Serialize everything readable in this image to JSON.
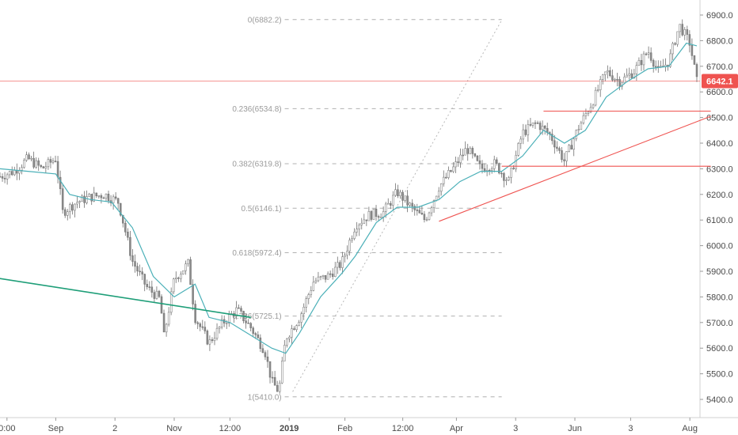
{
  "chart_data": {
    "type": "candlestick",
    "title": "",
    "xlabel": "",
    "ylabel": "",
    "ylim": [
      5360,
      6960
    ],
    "y_ticks": [
      "6900.0",
      "6800.0",
      "6700.0",
      "6600.0",
      "6500.0",
      "6400.0",
      "6300.0",
      "6200.0",
      "6100.0",
      "6000.0",
      "5900.0",
      "5800.0",
      "5700.0",
      "5600.0",
      "5500.0",
      "5400.0"
    ],
    "x_ticks": [
      "0:00",
      "Sep",
      "2",
      "Nov",
      "12:00",
      "2019",
      "Feb",
      "12:00",
      "Apr",
      "3",
      "Jun",
      "3",
      "Aug"
    ],
    "current_price": {
      "label": "6642.1",
      "value": 6642.1,
      "color": "#ef5350"
    },
    "fib_levels": [
      {
        "label": "0(6882.2)",
        "value": 6882.2
      },
      {
        "label": "0.236(6534.8)",
        "value": 6534.8
      },
      {
        "label": "0.382(6319.8)",
        "value": 6319.8
      },
      {
        "label": "0.5(6146.1)",
        "value": 6146.1
      },
      {
        "label": "0.618(5972.4)",
        "value": 5972.4
      },
      {
        "label": "0.786(5725.1)",
        "value": 5725.1
      },
      {
        "label": "1(5410.0)",
        "value": 5410.0
      }
    ],
    "price_path": [
      [
        0,
        6270
      ],
      [
        0.02,
        6290
      ],
      [
        0.04,
        6340
      ],
      [
        0.06,
        6300
      ],
      [
        0.08,
        6340
      ],
      [
        0.09,
        6130
      ],
      [
        0.11,
        6170
      ],
      [
        0.13,
        6190
      ],
      [
        0.15,
        6200
      ],
      [
        0.17,
        6170
      ],
      [
        0.19,
        5940
      ],
      [
        0.21,
        5840
      ],
      [
        0.23,
        5790
      ],
      [
        0.235,
        5640
      ],
      [
        0.25,
        5870
      ],
      [
        0.27,
        5930
      ],
      [
        0.28,
        5720
      ],
      [
        0.3,
        5620
      ],
      [
        0.32,
        5700
      ],
      [
        0.34,
        5750
      ],
      [
        0.36,
        5680
      ],
      [
        0.38,
        5590
      ],
      [
        0.39,
        5470
      ],
      [
        0.4,
        5430
      ],
      [
        0.41,
        5640
      ],
      [
        0.43,
        5720
      ],
      [
        0.45,
        5860
      ],
      [
        0.47,
        5880
      ],
      [
        0.49,
        5930
      ],
      [
        0.51,
        6080
      ],
      [
        0.53,
        6120
      ],
      [
        0.55,
        6130
      ],
      [
        0.57,
        6210
      ],
      [
        0.59,
        6150
      ],
      [
        0.61,
        6100
      ],
      [
        0.63,
        6230
      ],
      [
        0.65,
        6300
      ],
      [
        0.67,
        6380
      ],
      [
        0.69,
        6300
      ],
      [
        0.71,
        6320
      ],
      [
        0.73,
        6250
      ],
      [
        0.75,
        6440
      ],
      [
        0.77,
        6480
      ],
      [
        0.79,
        6430
      ],
      [
        0.81,
        6330
      ],
      [
        0.83,
        6460
      ],
      [
        0.85,
        6560
      ],
      [
        0.87,
        6680
      ],
      [
        0.89,
        6640
      ],
      [
        0.91,
        6680
      ],
      [
        0.93,
        6760
      ],
      [
        0.945,
        6680
      ],
      [
        0.96,
        6720
      ],
      [
        0.975,
        6860
      ],
      [
        0.99,
        6790
      ],
      [
        1.0,
        6642
      ]
    ],
    "moving_average": [
      [
        0,
        6300
      ],
      [
        0.04,
        6290
      ],
      [
        0.08,
        6280
      ],
      [
        0.1,
        6200
      ],
      [
        0.13,
        6180
      ],
      [
        0.16,
        6170
      ],
      [
        0.19,
        6070
      ],
      [
        0.22,
        5880
      ],
      [
        0.25,
        5800
      ],
      [
        0.28,
        5850
      ],
      [
        0.3,
        5720
      ],
      [
        0.33,
        5700
      ],
      [
        0.36,
        5650
      ],
      [
        0.39,
        5600
      ],
      [
        0.41,
        5580
      ],
      [
        0.43,
        5660
      ],
      [
        0.46,
        5800
      ],
      [
        0.49,
        5890
      ],
      [
        0.51,
        5960
      ],
      [
        0.54,
        6090
      ],
      [
        0.57,
        6150
      ],
      [
        0.6,
        6150
      ],
      [
        0.63,
        6180
      ],
      [
        0.66,
        6250
      ],
      [
        0.69,
        6290
      ],
      [
        0.72,
        6290
      ],
      [
        0.75,
        6350
      ],
      [
        0.78,
        6450
      ],
      [
        0.81,
        6400
      ],
      [
        0.84,
        6450
      ],
      [
        0.87,
        6580
      ],
      [
        0.9,
        6640
      ],
      [
        0.93,
        6690
      ],
      [
        0.96,
        6700
      ],
      [
        0.985,
        6790
      ],
      [
        1.0,
        6780
      ]
    ],
    "trendlines": [
      {
        "name": "green",
        "color": "#1e9e78",
        "from": [
          -0.02,
          5880
        ],
        "to": [
          0.36,
          5720
        ]
      },
      {
        "name": "red-rising",
        "color": "#ef5350",
        "from": [
          0.63,
          6095
        ],
        "to": [
          1.02,
          6505
        ]
      },
      {
        "name": "red-upper",
        "color": "#ef5350",
        "from": [
          0.78,
          6525
        ],
        "to": [
          1.02,
          6525
        ]
      },
      {
        "name": "red-lower",
        "color": "#ef5350",
        "from": [
          0.72,
          6310
        ],
        "to": [
          1.02,
          6310
        ]
      }
    ],
    "dotted_diagonal": {
      "from": [
        0.42,
        5430
      ],
      "to": [
        0.72,
        6880
      ]
    },
    "fib_range_x": [
      0.42,
      0.72
    ]
  }
}
